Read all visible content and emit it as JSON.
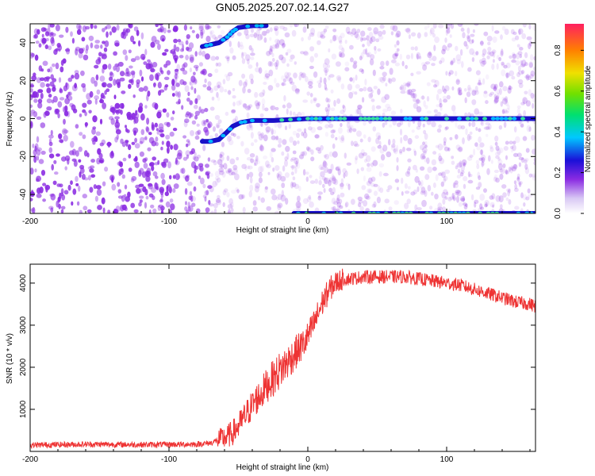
{
  "page": {
    "title": "GN05.2025.207.02.14.G27"
  },
  "colors": {
    "snr_line": "#ee3333",
    "spectrogram_point": "#8a2be2",
    "ridge": "#1a10c8",
    "background": "#ffffff"
  },
  "chart_data": [
    {
      "type": "heatmap",
      "title": "",
      "xlabel": "Height of straight line (km)",
      "ylabel": "Frequency (Hz)",
      "xlim": [
        -200,
        164
      ],
      "ylim": [
        -50,
        50
      ],
      "x_ticks": [
        "-200",
        "-100",
        "0",
        "100"
      ],
      "y_ticks": [
        "40",
        "20",
        "0",
        "-20",
        "-40"
      ],
      "colorbar": {
        "label": "Normalized spectral amplitude",
        "range": [
          0,
          0.93
        ],
        "ticks": [
          "0.8",
          "0.6",
          "0.4",
          "0.2",
          "0.0"
        ]
      },
      "ridges": [
        {
          "x": [
            -76,
            -70,
            -64,
            -58,
            -54,
            -50,
            -40,
            -30
          ],
          "y": [
            38,
            39,
            40,
            43,
            46,
            48,
            49,
            49
          ]
        },
        {
          "x": [
            -76,
            -70,
            -64,
            -58,
            -54,
            -48,
            -40,
            -25,
            0,
            50,
            100,
            164
          ],
          "y": [
            -12,
            -12,
            -11,
            -7,
            -4,
            -2,
            -1,
            -1,
            0,
            0,
            0,
            0
          ]
        },
        {
          "x": [
            -10,
            30,
            80,
            130,
            164
          ],
          "y": [
            -50,
            -50,
            -50,
            -50,
            -50
          ]
        }
      ]
    },
    {
      "type": "line",
      "title": "",
      "xlabel": "Height of straight line (km)",
      "ylabel": "SNR (10 * v/v)",
      "xlim": [
        -200,
        164
      ],
      "ylim": [
        0,
        4450
      ],
      "x_ticks": [
        "-200",
        "-100",
        "0",
        "100"
      ],
      "y_ticks": [
        "4000",
        "3000",
        "2000",
        "1000"
      ],
      "series": [
        {
          "x": [
            -200,
            -180,
            -160,
            -140,
            -120,
            -100,
            -80,
            -70,
            -62,
            -58,
            -54,
            -50,
            -46,
            -42,
            -38,
            -34,
            -30,
            -26,
            -22,
            -18,
            -14,
            -10,
            -6,
            -2,
            2,
            6,
            10,
            14,
            18,
            22,
            26,
            30,
            40,
            50,
            60,
            70,
            80,
            90,
            100,
            110,
            120,
            130,
            140,
            150,
            160,
            164
          ],
          "y": [
            150,
            160,
            170,
            165,
            160,
            165,
            170,
            200,
            300,
            350,
            450,
            600,
            800,
            1000,
            1200,
            1350,
            1550,
            1700,
            1850,
            2000,
            2150,
            2300,
            2450,
            2600,
            2850,
            3150,
            3500,
            3750,
            3950,
            4050,
            4100,
            4100,
            4150,
            4150,
            4150,
            4150,
            4100,
            4050,
            4000,
            3950,
            3850,
            3750,
            3650,
            3550,
            3500,
            3450
          ]
        }
      ]
    }
  ]
}
